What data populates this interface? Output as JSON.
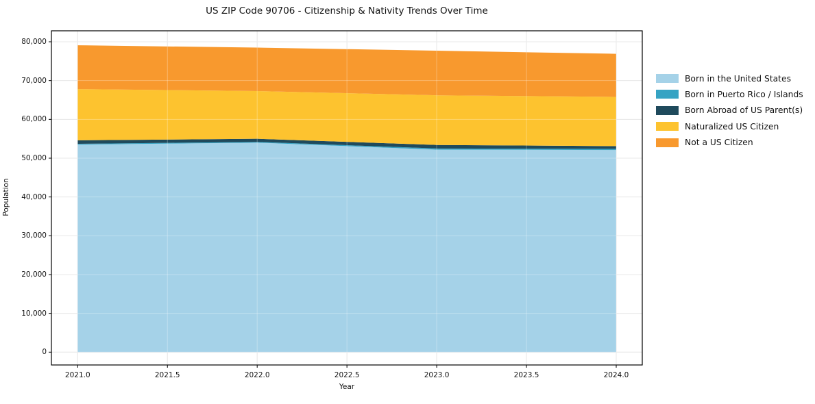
{
  "chart_data": {
    "type": "area",
    "stacked": true,
    "title": "US ZIP Code 90706 - Citizenship & Nativity Trends Over Time",
    "xlabel": "Year",
    "ylabel": "Population",
    "x": [
      2021,
      2022,
      2023,
      2024
    ],
    "series": [
      {
        "name": "Born in the United States",
        "color": "#a5d2e8",
        "values": [
          53500,
          54000,
          52200,
          52100
        ]
      },
      {
        "name": "Born in Puerto Rico / Islands",
        "color": "#36a3c3",
        "values": [
          200,
          200,
          300,
          300
        ]
      },
      {
        "name": "Born Abroad of US Parent(s)",
        "color": "#1f4a5c",
        "values": [
          900,
          800,
          900,
          700
        ]
      },
      {
        "name": "Naturalized US Citizen",
        "color": "#fdc32f",
        "values": [
          13200,
          12300,
          12800,
          12700
        ]
      },
      {
        "name": "Not a US Citizen",
        "color": "#f8992e",
        "values": [
          11300,
          11200,
          11500,
          11100
        ]
      }
    ],
    "totals": [
      79100,
      78500,
      77700,
      76900
    ],
    "x_ticks": [
      2021.0,
      2021.5,
      2022.0,
      2022.5,
      2023.0,
      2023.5,
      2024.0
    ],
    "x_tick_labels": [
      "2021.0",
      "2021.5",
      "2022.0",
      "2022.5",
      "2023.0",
      "2023.5",
      "2024.0"
    ],
    "y_ticks": [
      0,
      10000,
      20000,
      30000,
      40000,
      50000,
      60000,
      70000,
      80000
    ],
    "y_tick_labels": [
      "0",
      "10,000",
      "20,000",
      "30,000",
      "40,000",
      "50,000",
      "60,000",
      "70,000",
      "80,000"
    ],
    "ylim": [
      0,
      80000
    ],
    "xlim": [
      2021,
      2024
    ],
    "grid": true,
    "legend_position": "right-outside"
  },
  "colors": {
    "background": "#ffffff",
    "grid": "#dedede",
    "grid_overlay": "rgba(255,255,255,0.30)",
    "spine": "#000000",
    "text": "#111111"
  }
}
